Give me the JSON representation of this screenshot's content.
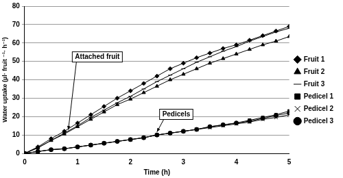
{
  "chart_data": {
    "type": "line",
    "x_label": "Time (h)",
    "y_label": "Water uptake (µl· fruit ⁻¹· h⁻¹)",
    "x": [
      0,
      0.25,
      0.5,
      0.75,
      1,
      1.25,
      1.5,
      1.75,
      2,
      2.25,
      2.5,
      2.75,
      3,
      3.25,
      3.5,
      3.75,
      4,
      4.25,
      4.5,
      4.75,
      5
    ],
    "series": [
      {
        "name": "Fruit 1",
        "color": "#000000",
        "marker": "diamond",
        "values": [
          0,
          3.5,
          8,
          12,
          16.5,
          21,
          25.5,
          30,
          34,
          38,
          42,
          46,
          49,
          52,
          54.5,
          57,
          59,
          61.5,
          64,
          66.5,
          69
        ]
      },
      {
        "name": "Fruit 2",
        "color": "#000000",
        "marker": "triangle",
        "values": [
          0,
          3,
          7,
          10.5,
          14.5,
          18.5,
          22.5,
          26.5,
          29.5,
          33,
          36.5,
          40,
          43,
          46,
          49,
          51.5,
          54,
          56.5,
          59,
          61,
          63.5
        ]
      },
      {
        "name": "Fruit 3",
        "color": "#000000",
        "marker": "dash",
        "values": [
          0,
          3,
          7,
          11,
          15,
          19.5,
          23.5,
          27.5,
          31,
          35,
          39,
          42.5,
          46,
          49.5,
          52.5,
          55.5,
          58,
          61,
          63.5,
          66,
          68
        ]
      },
      {
        "name": "Pedicel 1",
        "color": "#000000",
        "marker": "square",
        "values": [
          0,
          1,
          2,
          2.5,
          3.5,
          4.5,
          5.5,
          6.5,
          7.5,
          8.5,
          10,
          11,
          12,
          13,
          14.5,
          15.5,
          16.5,
          18,
          19.5,
          21,
          23
        ]
      },
      {
        "name": "Pedicel 2",
        "color": "#000000",
        "marker": "x",
        "values": [
          0,
          1,
          2,
          2.5,
          3.5,
          4.5,
          5.5,
          6.5,
          7.5,
          8.5,
          10,
          11,
          12,
          13,
          14,
          15,
          16,
          17,
          18.5,
          19.5,
          21
        ]
      },
      {
        "name": "Pedicel 3",
        "color": "#000000",
        "marker": "circle",
        "values": [
          0,
          1,
          2,
          2.5,
          3.5,
          4.5,
          5.5,
          6.5,
          7.5,
          8.5,
          10,
          11,
          12,
          13,
          14.5,
          15.5,
          16.5,
          17.5,
          19,
          20.5,
          22
        ]
      }
    ],
    "annotations": [
      {
        "text": "Attached fruit"
      },
      {
        "text": "Pedicels"
      }
    ],
    "xlim": [
      0,
      5
    ],
    "xticks": [
      0,
      1,
      2,
      3,
      4,
      5
    ],
    "ylim": [
      0,
      80
    ],
    "yticks": [
      0,
      10,
      20,
      30,
      40,
      50,
      60,
      70,
      80
    ],
    "grid": true,
    "legend": "right"
  }
}
